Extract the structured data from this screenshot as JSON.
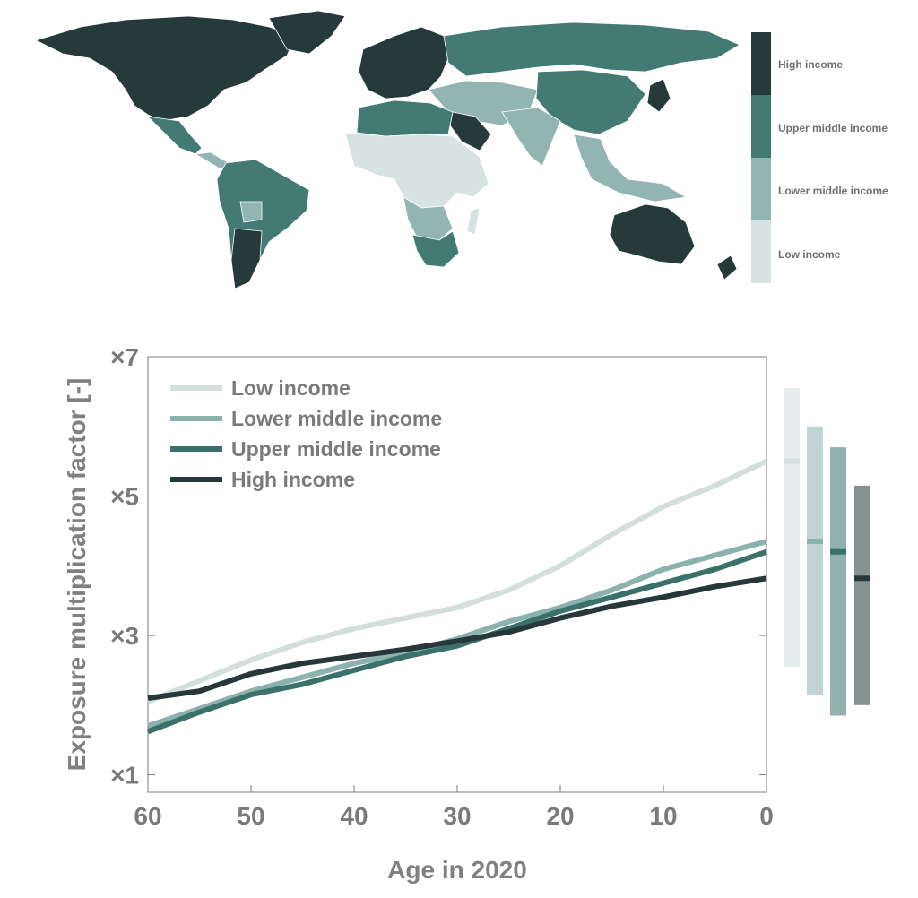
{
  "map": {
    "legend": [
      {
        "label": "High income",
        "color": "#263a3a"
      },
      {
        "label": "Upper middle income",
        "color": "#437a74"
      },
      {
        "label": "Lower middle income",
        "color": "#93b5b2"
      },
      {
        "label": "Low income",
        "color": "#d7e3e2"
      }
    ]
  },
  "chart_data": {
    "type": "line",
    "title": "",
    "xlabel": "Age in 2020",
    "ylabel": "Exposure multiplication factor [-]",
    "x_ticks": [
      "60",
      "50",
      "40",
      "30",
      "20",
      "10",
      "0"
    ],
    "y_ticks": [
      "×1",
      "×3",
      "×5",
      "×7"
    ],
    "xlim": [
      60,
      0
    ],
    "ylim": [
      0.75,
      7
    ],
    "x_reversed": true,
    "grid": false,
    "legend_position": "top-left",
    "x": [
      60,
      55,
      50,
      45,
      40,
      35,
      30,
      25,
      20,
      15,
      10,
      5,
      0
    ],
    "series": [
      {
        "name": "Low income",
        "color": "#d2dfdd",
        "values": [
          2.05,
          2.35,
          2.65,
          2.9,
          3.1,
          3.25,
          3.4,
          3.65,
          4.0,
          4.45,
          4.85,
          5.15,
          5.5
        ]
      },
      {
        "name": "Lower middle income",
        "color": "#8cb2ae",
        "values": [
          1.7,
          1.95,
          2.2,
          2.4,
          2.6,
          2.75,
          2.95,
          3.2,
          3.4,
          3.65,
          3.95,
          4.15,
          4.35
        ]
      },
      {
        "name": "Upper middle income",
        "color": "#3b716b",
        "values": [
          1.62,
          1.9,
          2.15,
          2.3,
          2.5,
          2.7,
          2.85,
          3.1,
          3.35,
          3.55,
          3.75,
          3.95,
          4.2
        ]
      },
      {
        "name": "High income",
        "color": "#263838",
        "values": [
          2.1,
          2.2,
          2.45,
          2.6,
          2.7,
          2.8,
          2.92,
          3.05,
          3.25,
          3.42,
          3.55,
          3.7,
          3.82
        ]
      }
    ],
    "ranges": [
      {
        "name": "Low income",
        "low": 2.55,
        "high": 6.55,
        "median": 5.5,
        "color": "#d2dfdd"
      },
      {
        "name": "Lower middle income",
        "low": 2.15,
        "high": 6.0,
        "median": 4.35,
        "color": "#8cb2ae"
      },
      {
        "name": "Upper middle income",
        "low": 1.85,
        "high": 5.7,
        "median": 4.2,
        "color": "#3b716b"
      },
      {
        "name": "High income",
        "low": 2.0,
        "high": 5.15,
        "median": 3.82,
        "color": "#263838"
      }
    ]
  }
}
